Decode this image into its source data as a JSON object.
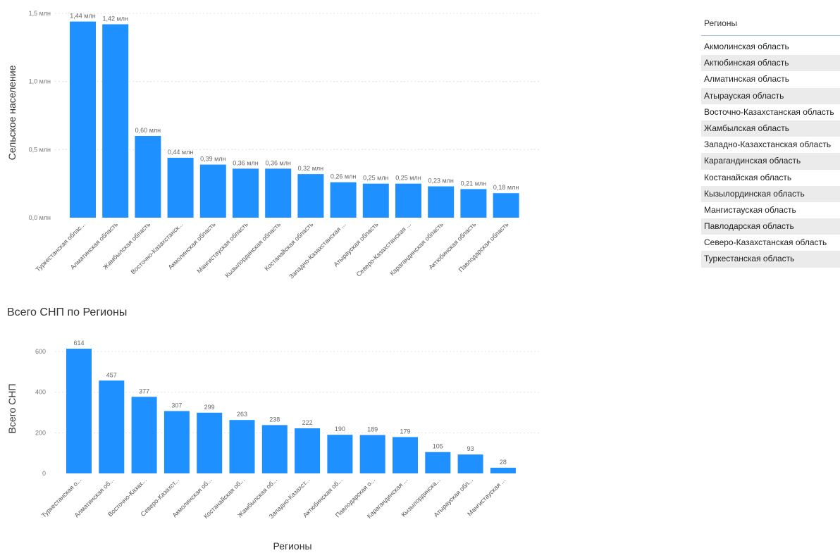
{
  "colors": {
    "bar": "#1e90ff"
  },
  "slicer": {
    "title": "Регионы",
    "items": [
      "Акмолинская область",
      "Актюбинская область",
      "Алматинская область",
      "Атырауская область",
      "Восточно-Казахстанская область",
      "Жамбылская область",
      "Западно-Казахстанская область",
      "Карагандинская область",
      "Костанайская область",
      "Кызылординская область",
      "Мангистауская область",
      "Павлодарская область",
      "Северо-Казахстанская область",
      "Туркестанская область"
    ]
  },
  "chart_data": [
    {
      "type": "bar",
      "title": "",
      "xlabel": "",
      "ylabel": "Сельское население",
      "ylim": [
        0,
        1.5
      ],
      "yticks": [
        {
          "value": 0,
          "label": "0,0 млн"
        },
        {
          "value": 0.5,
          "label": "0,5 млн"
        },
        {
          "value": 1.0,
          "label": "1,0 млн"
        },
        {
          "value": 1.5,
          "label": "1,5 млн"
        }
      ],
      "grid": true,
      "categories": [
        "Туркестанская облас...",
        "Алматинская область",
        "Жамбылская область",
        "Восточно-Казахстанск...",
        "Акмолинская область",
        "Мангистауская область",
        "Кызылординская область",
        "Костанайская область",
        "Западно-Казахстанская ...",
        "Атырауская область",
        "Северо-Казахстанская ...",
        "Карагандинская область",
        "Актюбинская область",
        "Павлодарская область"
      ],
      "values": [
        1.44,
        1.42,
        0.6,
        0.44,
        0.39,
        0.36,
        0.36,
        0.32,
        0.26,
        0.25,
        0.25,
        0.23,
        0.21,
        0.18
      ],
      "data_labels": [
        "1,44 млн",
        "1,42 млн",
        "0,60 млн",
        "0,44 млн",
        "0,39 млн",
        "0,36 млн",
        "0,36 млн",
        "0,32 млн",
        "0,26 млн",
        "0,25 млн",
        "0,25 млн",
        "0,23 млн",
        "0,21 млн",
        "0,18 млн"
      ]
    },
    {
      "type": "bar",
      "title": "Всего СНП по Регионы",
      "xlabel": "Регионы",
      "ylabel": "Всего СНП",
      "ylim": [
        0,
        614
      ],
      "yticks": [
        {
          "value": 0,
          "label": "0"
        },
        {
          "value": 200,
          "label": "200"
        },
        {
          "value": 400,
          "label": "400"
        },
        {
          "value": 600,
          "label": "600"
        }
      ],
      "grid": true,
      "categories": [
        "Туркестанская о...",
        "Алматинская об...",
        "Восточно-Казах...",
        "Северо-Казахст...",
        "Акмолинская об...",
        "Костанайская об...",
        "Жамбылская об...",
        "Западно-Казахст...",
        "Актюбинская об...",
        "Павлодарская о...",
        "Карагандинская ...",
        "Кызылординска...",
        "Атырауская обл...",
        "Мангистауская ..."
      ],
      "values": [
        614,
        457,
        377,
        307,
        299,
        263,
        238,
        222,
        190,
        189,
        179,
        105,
        93,
        28
      ],
      "data_labels": [
        "614",
        "457",
        "377",
        "307",
        "299",
        "263",
        "238",
        "222",
        "190",
        "189",
        "179",
        "105",
        "93",
        "28"
      ]
    }
  ]
}
